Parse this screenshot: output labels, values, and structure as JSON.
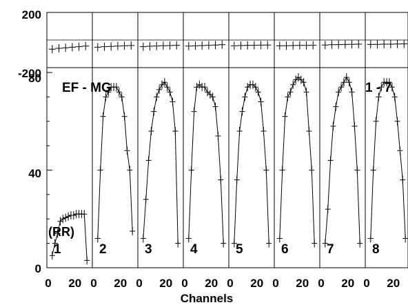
{
  "chart_data": {
    "type": "scatter",
    "xlabel": "Channels",
    "annotation_left": "EF - MG",
    "annotation_right": "1 - 7",
    "baseline_label": "(RR)",
    "top_yticks": [
      "200",
      "-200"
    ],
    "main_yticks": [
      "80",
      "40",
      "0"
    ],
    "main_ylim": [
      0,
      82
    ],
    "top_ylim": [
      -200,
      200
    ],
    "panel_xlim": [
      0,
      32
    ],
    "xtick_values": [
      0,
      20
    ],
    "grid": false,
    "panels": [
      {
        "label": "1",
        "x": [
          3,
          5,
          7,
          9,
          11,
          13,
          15,
          17,
          19,
          21,
          23,
          25,
          27,
          29
        ],
        "y": [
          5,
          10,
          14,
          19,
          20,
          20.5,
          21,
          21.5,
          21.5,
          22,
          22,
          22,
          22,
          3
        ],
        "residual_x": [
          3,
          8,
          13,
          18,
          23,
          28
        ],
        "residual_y": [
          -66,
          -60,
          -56,
          -52,
          -48,
          -44
        ]
      },
      {
        "label": "2",
        "x": [
          3,
          5,
          7,
          9,
          11,
          13,
          15,
          17,
          19,
          21,
          23,
          25,
          27,
          29
        ],
        "y": [
          12,
          40,
          62,
          70,
          72,
          74,
          74,
          74,
          72,
          70,
          62,
          48,
          40,
          15
        ],
        "residual_x": [
          3,
          8,
          13,
          18,
          23,
          28
        ],
        "residual_y": [
          -52,
          -48,
          -46,
          -44,
          -42,
          -40
        ]
      },
      {
        "label": "3",
        "x": [
          3,
          5,
          7,
          9,
          11,
          13,
          15,
          17,
          19,
          21,
          23,
          25,
          27,
          29
        ],
        "y": [
          12,
          28,
          44,
          56,
          64,
          70,
          73,
          75,
          76,
          74,
          72,
          68,
          56,
          10
        ],
        "residual_x": [
          3,
          8,
          13,
          18,
          23,
          28
        ],
        "residual_y": [
          -48,
          -45,
          -43,
          -41,
          -40,
          -38
        ]
      },
      {
        "label": "4",
        "x": [
          3,
          5,
          7,
          9,
          11,
          13,
          15,
          17,
          19,
          21,
          23,
          25,
          27,
          29
        ],
        "y": [
          12,
          40,
          64,
          74,
          75,
          74,
          74,
          72,
          71,
          70,
          66,
          54,
          36,
          10
        ],
        "residual_x": [
          3,
          8,
          13,
          18,
          23,
          28
        ],
        "residual_y": [
          -44,
          -42,
          -40,
          -38,
          -36,
          -34
        ]
      },
      {
        "label": "5",
        "x": [
          3,
          5,
          7,
          9,
          11,
          13,
          15,
          17,
          19,
          21,
          23,
          25,
          27,
          29
        ],
        "y": [
          10,
          36,
          56,
          64,
          70,
          74,
          75,
          75,
          74,
          72,
          68,
          56,
          40,
          10
        ],
        "residual_x": [
          3,
          8,
          13,
          18,
          23,
          28
        ],
        "residual_y": [
          -42,
          -40,
          -39,
          -38,
          -37,
          -36
        ]
      },
      {
        "label": "6",
        "x": [
          3,
          5,
          7,
          9,
          11,
          13,
          15,
          17,
          19,
          21,
          23,
          25,
          27,
          29
        ],
        "y": [
          12,
          40,
          62,
          70,
          72,
          75,
          77,
          78,
          77,
          76,
          72,
          56,
          40,
          10
        ],
        "residual_x": [
          3,
          8,
          13,
          18,
          23,
          28
        ],
        "residual_y": [
          -42,
          -41,
          -40,
          -39,
          -39,
          -38
        ]
      },
      {
        "label": "7",
        "x": [
          3,
          5,
          7,
          9,
          11,
          13,
          15,
          17,
          19,
          21,
          23,
          25,
          27,
          29
        ],
        "y": [
          10,
          24,
          44,
          58,
          66,
          72,
          74,
          76,
          78,
          76,
          72,
          58,
          40,
          10
        ],
        "residual_x": [
          3,
          8,
          13,
          18,
          23,
          28
        ],
        "residual_y": [
          -36,
          -34,
          -33,
          -32,
          -31,
          -30
        ]
      },
      {
        "label": "8",
        "x": [
          3,
          5,
          7,
          9,
          11,
          13,
          15,
          17,
          19,
          21,
          23,
          25,
          27,
          29
        ],
        "y": [
          12,
          40,
          60,
          70,
          74,
          76,
          76,
          76,
          74,
          70,
          60,
          48,
          36,
          12
        ],
        "residual_x": [
          3,
          8,
          13,
          18,
          23,
          28
        ],
        "residual_y": [
          -32,
          -31,
          -30,
          -30,
          -29,
          -28
        ]
      }
    ]
  }
}
